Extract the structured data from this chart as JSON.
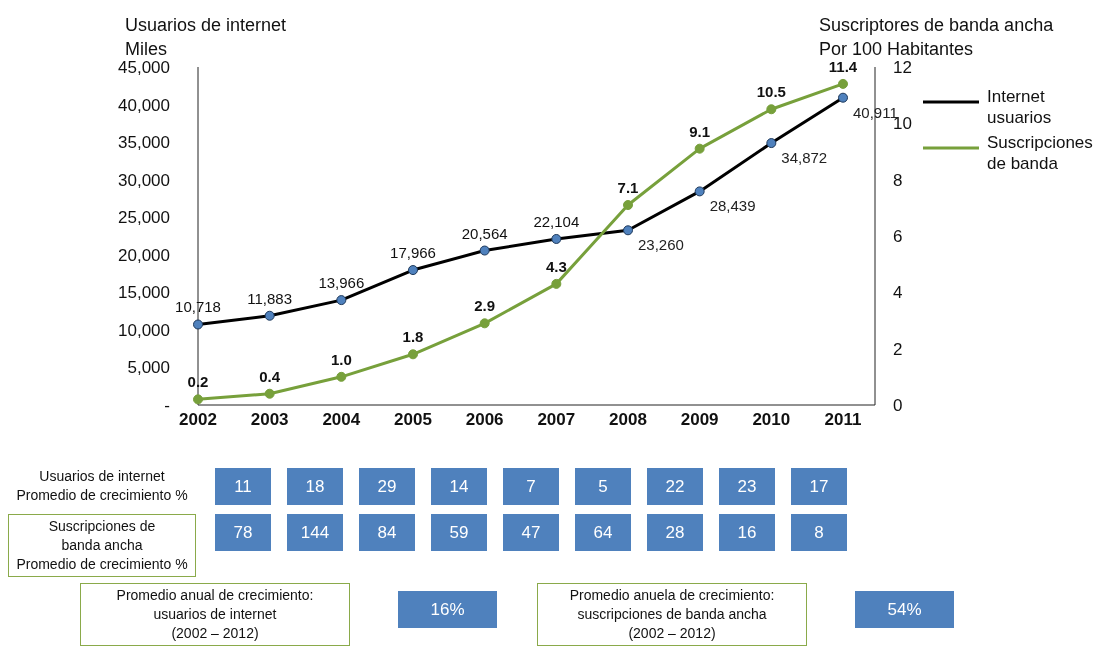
{
  "chart_data": [
    {
      "type": "line",
      "ylabel": "Usuarios de internet\nMiles",
      "y2label": "Suscriptores de banda ancha\nPor 100 Habitantes",
      "categories": [
        "2002",
        "2003",
        "2004",
        "2005",
        "2006",
        "2007",
        "2008",
        "2009",
        "2010",
        "2011"
      ],
      "series": [
        {
          "name": "Internet usuarios",
          "color": "#000000",
          "values": [
            10718,
            11883,
            13966,
            17966,
            20564,
            22104,
            23260,
            28439,
            34872,
            40911
          ],
          "value_labels": [
            "10,718",
            "11,883",
            "13,966",
            "17,966",
            "20,564",
            "22,104",
            "23,260",
            "28,439",
            "34,872",
            "40,911"
          ]
        },
        {
          "name": "Suscripciones de banda",
          "color": "#77a03b",
          "axis": "y2",
          "values": [
            0.2,
            0.4,
            1.0,
            1.8,
            2.9,
            4.3,
            7.1,
            9.1,
            10.5,
            11.4
          ],
          "value_labels": [
            "0.2",
            "0.4",
            "1.0",
            "1.8",
            "2.9",
            "4.3",
            "7.1",
            "9.1",
            "10.5",
            "11.4"
          ]
        }
      ],
      "ylim": [
        0,
        45000
      ],
      "yticks": [
        {
          "value": 0,
          "label": "-"
        },
        {
          "value": 5000,
          "label": "5,000"
        },
        {
          "value": 10000,
          "label": "10,000"
        },
        {
          "value": 15000,
          "label": "15,000"
        },
        {
          "value": 20000,
          "label": "20,000"
        },
        {
          "value": 25000,
          "label": "25,000"
        },
        {
          "value": 30000,
          "label": "30,000"
        },
        {
          "value": 35000,
          "label": "35,000"
        },
        {
          "value": 40000,
          "label": "40,000"
        },
        {
          "value": 45000,
          "label": "45,000"
        }
      ],
      "y2lim": [
        0,
        12
      ],
      "y2ticks": [
        0,
        2,
        4,
        6,
        8,
        10,
        12
      ],
      "legend": "right",
      "marker": "circle",
      "line_style": "solid"
    },
    {
      "type": "other",
      "annotations": [
        "Usuarios de internet\nPromedio de crecimiento %",
        "11",
        "18",
        "29",
        "14",
        "7",
        "5",
        "22",
        "23",
        "17"
      ]
    },
    {
      "type": "other",
      "annotations": [
        "Suscripciones de\nbanda ancha\nPromedio de crecimiento %",
        "78",
        "144",
        "84",
        "59",
        "47",
        "64",
        "28",
        "16",
        "8"
      ]
    },
    {
      "type": "other",
      "annotations": [
        "Promedio anual de crecimiento:\nusuarios de internet\n(2002 – 2012)",
        "16%",
        "Promedio anuela de crecimiento:\nsuscripciones de banda ancha\n(2002 – 2012)",
        "54%"
      ]
    }
  ]
}
